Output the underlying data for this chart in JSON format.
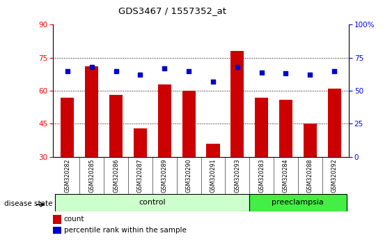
{
  "title": "GDS3467 / 1557352_at",
  "samples": [
    "GSM320282",
    "GSM320285",
    "GSM320286",
    "GSM320287",
    "GSM320289",
    "GSM320290",
    "GSM320291",
    "GSM320293",
    "GSM320283",
    "GSM320284",
    "GSM320288",
    "GSM320292"
  ],
  "count_values": [
    57,
    71,
    58,
    43,
    63,
    60,
    36,
    78,
    57,
    56,
    45,
    61
  ],
  "percentile_values": [
    65,
    68,
    65,
    62,
    67,
    65,
    57,
    68,
    64,
    63,
    62,
    65
  ],
  "control_count": 8,
  "preeclampsia_count": 4,
  "ylim_left": [
    30,
    90
  ],
  "ylim_right": [
    0,
    100
  ],
  "yticks_left": [
    30,
    45,
    60,
    75,
    90
  ],
  "yticks_right": [
    0,
    25,
    50,
    75,
    100
  ],
  "bar_color": "#cc0000",
  "dot_color": "#0000cc",
  "control_bg": "#ccffcc",
  "preeclampsia_bg": "#44ee44",
  "sample_bg": "#d0d0d0",
  "grid_color": "#000000",
  "legend_count_label": "count",
  "legend_pct_label": "percentile rank within the sample",
  "control_label": "control",
  "preeclampsia_label": "preeclampsia",
  "disease_state_label": "disease state"
}
